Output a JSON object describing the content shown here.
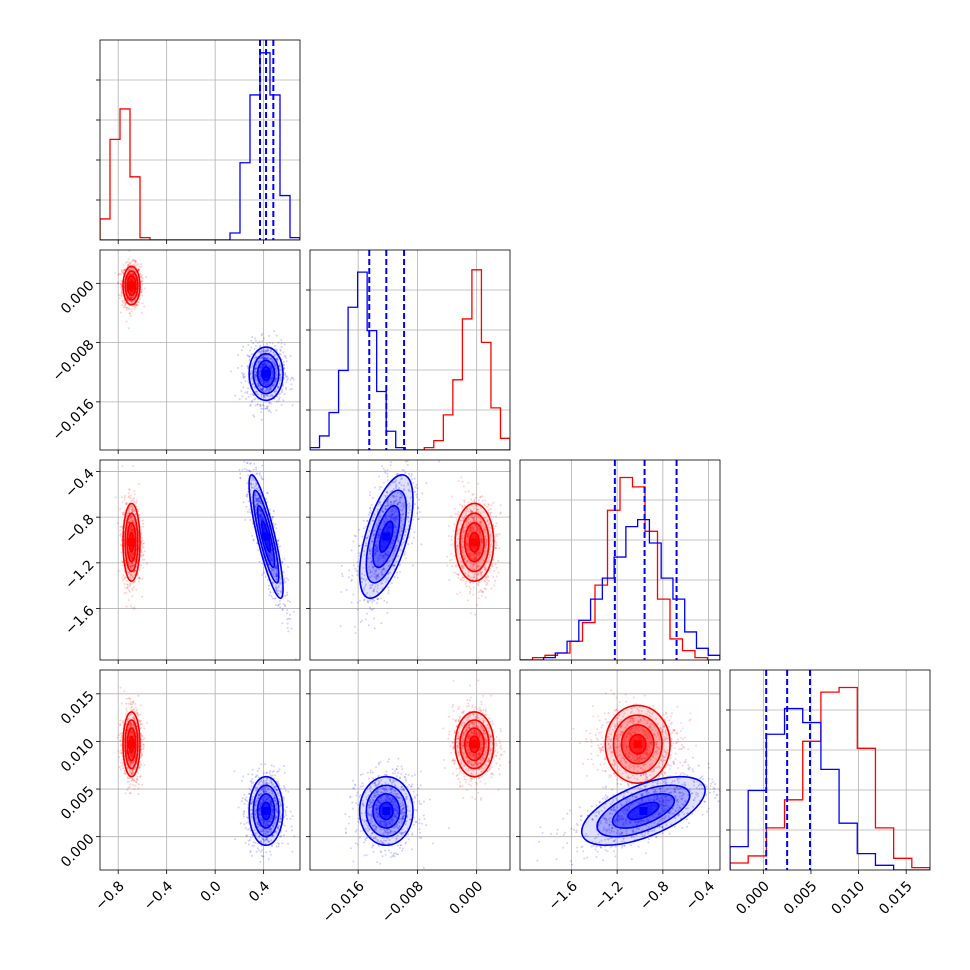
{
  "chart_data": {
    "type": "corner",
    "title": "",
    "parameters": [
      "",
      "",
      "",
      ""
    ],
    "ranges": [
      [
        -0.95,
        0.7
      ],
      [
        -0.0225,
        0.0045
      ],
      [
        -2.05,
        -0.3
      ],
      [
        -0.0035,
        0.0175
      ]
    ],
    "grid": true,
    "ticks": [
      [
        "−0.8",
        "−0.4",
        "0.0",
        "0.4"
      ],
      [
        "−0.016",
        "−0.008",
        "0.000"
      ],
      [
        "−1.6",
        "−1.2",
        "−0.8",
        "−0.4"
      ],
      [
        "0.000",
        "0.005",
        "0.010",
        "0.015"
      ]
    ],
    "tick_values": [
      [
        -0.8,
        -0.4,
        0.0,
        0.4
      ],
      [
        -0.016,
        -0.008,
        0.0
      ],
      [
        -1.6,
        -1.2,
        -0.8,
        -0.4
      ],
      [
        0.0,
        0.005,
        0.01,
        0.015
      ]
    ],
    "colors": {
      "red": "#ff0000",
      "blue": "#0000ff"
    },
    "series": [
      {
        "color": "red",
        "mean": [
          -0.69,
          -0.0003,
          -1.02,
          0.0097
        ],
        "std": [
          0.035,
          0.0013,
          0.17,
          0.0017
        ],
        "corr": [
          [
            1,
            0,
            0,
            0
          ],
          [
            0,
            1,
            0,
            0
          ],
          [
            0,
            0,
            1,
            0
          ],
          [
            0,
            0,
            0,
            1
          ]
        ],
        "hist": [
          [
            0.09,
            0.43,
            0.56,
            0.27,
            0.01,
            0,
            0,
            0,
            0,
            0,
            0,
            0,
            0,
            0,
            0,
            0,
            0,
            0,
            0,
            0
          ],
          [
            0,
            0,
            0,
            0,
            0,
            0,
            0,
            0,
            0,
            0,
            0,
            0,
            0.01,
            0.04,
            0.15,
            0.3,
            0.56,
            0.77,
            0.46,
            0.18,
            0.05
          ],
          [
            0,
            0.01,
            0.02,
            0.03,
            0.08,
            0.16,
            0.32,
            0.64,
            0.78,
            0.74,
            0.55,
            0.26,
            0.09,
            0.04,
            0.01,
            0
          ],
          [
            0.03,
            0.06,
            0.18,
            0.3,
            0.55,
            0.76,
            0.78,
            0.52,
            0.18,
            0.05,
            0.01
          ]
        ]
      },
      {
        "color": "blue",
        "mean": [
          0.42,
          -0.0122,
          -0.97,
          0.0027
        ],
        "std": [
          0.07,
          0.0018,
          0.27,
          0.0018
        ],
        "corr": [
          [
            1,
            0,
            -0.85,
            0
          ],
          [
            0,
            1,
            0.6,
            0
          ],
          [
            -0.85,
            0.6,
            1,
            0.6
          ],
          [
            0,
            0,
            0.6,
            1
          ]
        ],
        "quantiles": [
          [
            0.37,
            0.42,
            0.48
          ],
          [
            -0.0145,
            -0.0122,
            -0.0098
          ],
          [
            -1.22,
            -0.96,
            -0.68
          ],
          [
            0.0003,
            0.0025,
            0.0049
          ]
        ],
        "hist": [
          [
            0,
            0,
            0,
            0,
            0,
            0,
            0,
            0,
            0,
            0,
            0,
            0,
            0,
            0.03,
            0.33,
            0.62,
            0.8,
            0.62,
            0.19,
            0.01
          ],
          [
            0.01,
            0.06,
            0.16,
            0.34,
            0.61,
            0.76,
            0.51,
            0.25,
            0.08,
            0.01,
            0,
            0,
            0,
            0,
            0,
            0,
            0,
            0,
            0,
            0,
            0
          ],
          [
            0,
            0,
            0.01,
            0.03,
            0.08,
            0.17,
            0.26,
            0.35,
            0.44,
            0.57,
            0.6,
            0.5,
            0.35,
            0.26,
            0.12,
            0.05,
            0.02
          ],
          [
            0.1,
            0.34,
            0.58,
            0.69,
            0.63,
            0.43,
            0.2,
            0.07,
            0.02,
            0,
            0
          ]
        ]
      }
    ]
  }
}
